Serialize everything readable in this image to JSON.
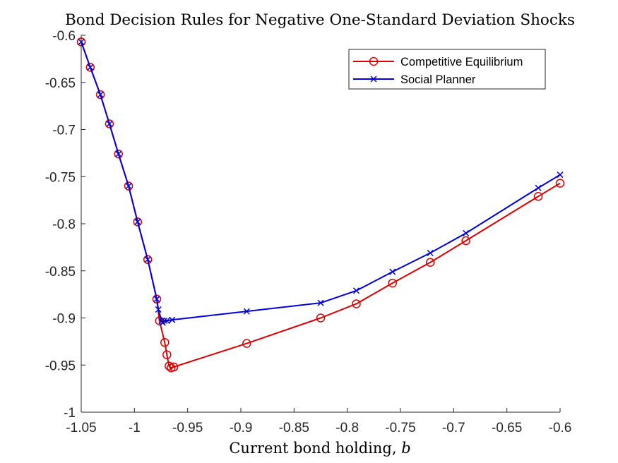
{
  "chart_data": {
    "type": "line",
    "title": "Bond Decision Rules for Negative One-Standard Deviation Shocks",
    "xlabel": "Current bond holding, ",
    "xlabel_var": "b",
    "ylabel": "",
    "xlim": [
      -1.05,
      -0.6
    ],
    "ylim": [
      -1.0,
      -0.6
    ],
    "xticks": [
      -1.05,
      -1,
      -0.95,
      -0.9,
      -0.85,
      -0.8,
      -0.75,
      -0.7,
      -0.65,
      -0.6
    ],
    "xtick_labels": [
      "-1.05",
      "-1",
      "-0.95",
      "-0.9",
      "-0.85",
      "-0.8",
      "-0.75",
      "-0.7",
      "-0.65",
      "-0.6"
    ],
    "yticks": [
      -1.0,
      -0.95,
      -0.9,
      -0.85,
      -0.8,
      -0.75,
      -0.7,
      -0.65,
      -0.6
    ],
    "ytick_labels": [
      "-1",
      "-0.95",
      "-0.9",
      "-0.85",
      "-0.8",
      "-0.75",
      "-0.7",
      "-0.65",
      "-0.6"
    ],
    "grid": false,
    "legend_position": "top-right",
    "series": [
      {
        "name": "Competitive Equilibrium",
        "color": "#dd0000",
        "marker": "circle",
        "points": [
          [
            -1.05,
            -0.607
          ],
          [
            -1.0415,
            -0.634
          ],
          [
            -1.032,
            -0.663
          ],
          [
            -1.0235,
            -0.694
          ],
          [
            -1.015,
            -0.726
          ],
          [
            -1.0055,
            -0.76
          ],
          [
            -0.997,
            -0.798
          ],
          [
            -0.9875,
            -0.838
          ],
          [
            -0.979,
            -0.88
          ],
          [
            -0.9765,
            -0.903
          ],
          [
            -0.9715,
            -0.926
          ],
          [
            -0.9695,
            -0.939
          ],
          [
            -0.9675,
            -0.951
          ],
          [
            -0.9655,
            -0.953
          ],
          [
            -0.963,
            -0.952
          ],
          [
            -0.8945,
            -0.927
          ],
          [
            -0.825,
            -0.9
          ],
          [
            -0.7915,
            -0.885
          ],
          [
            -0.7575,
            -0.863
          ],
          [
            -0.722,
            -0.841
          ],
          [
            -0.6885,
            -0.818
          ],
          [
            -0.6205,
            -0.771
          ],
          [
            -0.6,
            -0.757
          ]
        ]
      },
      {
        "name": "Social Planner",
        "color": "#0000dd",
        "marker": "x",
        "points": [
          [
            -1.05,
            -0.607
          ],
          [
            -1.0415,
            -0.634
          ],
          [
            -1.032,
            -0.663
          ],
          [
            -1.0235,
            -0.694
          ],
          [
            -1.015,
            -0.726
          ],
          [
            -1.0055,
            -0.76
          ],
          [
            -0.997,
            -0.798
          ],
          [
            -0.9875,
            -0.838
          ],
          [
            -0.979,
            -0.88
          ],
          [
            -0.9775,
            -0.891
          ],
          [
            -0.9745,
            -0.903
          ],
          [
            -0.9735,
            -0.905
          ],
          [
            -0.972,
            -0.903
          ],
          [
            -0.9695,
            -0.903
          ],
          [
            -0.9645,
            -0.902
          ],
          [
            -0.8945,
            -0.893
          ],
          [
            -0.825,
            -0.884
          ],
          [
            -0.7915,
            -0.871
          ],
          [
            -0.7575,
            -0.851
          ],
          [
            -0.722,
            -0.831
          ],
          [
            -0.6885,
            -0.81
          ],
          [
            -0.6205,
            -0.762
          ],
          [
            -0.6,
            -0.748
          ]
        ]
      }
    ]
  }
}
